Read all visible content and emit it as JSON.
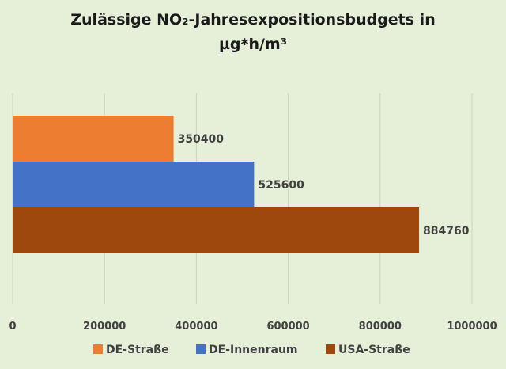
{
  "chart_data": {
    "type": "bar",
    "orientation": "horizontal",
    "title_line1": "Zulässige NO₂-Jahresexpositionsbudgets  in",
    "title_line2": "µg*h/m³",
    "xlim": [
      0,
      1000000
    ],
    "x_ticks": [
      "0",
      "200000",
      "400000",
      "600000",
      "800000",
      "1000000"
    ],
    "grid": "vertical",
    "legend_position": "bottom",
    "series": [
      {
        "name": "DE-Straße",
        "value": 350400,
        "label": "350400",
        "color": "#ed7d31"
      },
      {
        "name": "DE-Innenraum",
        "value": 525600,
        "label": "525600",
        "color": "#4472c4"
      },
      {
        "name": "USA-Straße",
        "value": 884760,
        "label": "884760",
        "color": "#9e480e"
      }
    ]
  }
}
